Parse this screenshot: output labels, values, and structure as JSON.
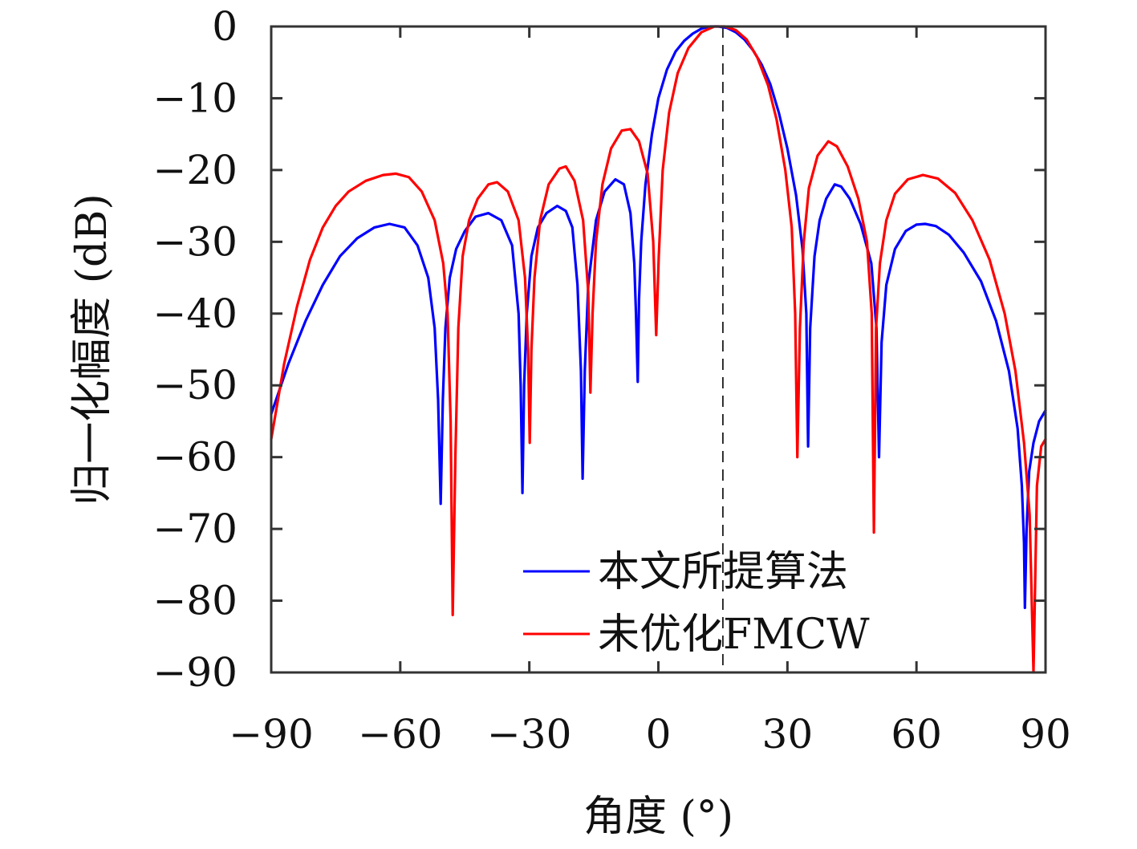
{
  "chart_data": {
    "type": "line",
    "title": "",
    "xlabel": "角度 (°)",
    "ylabel": "归一化幅度 (dB)",
    "xlim": [
      -90,
      90
    ],
    "ylim": [
      -90,
      0
    ],
    "xticks": [
      -90,
      -60,
      -30,
      0,
      30,
      60,
      90
    ],
    "yticks": [
      0,
      -10,
      -20,
      -30,
      -40,
      -50,
      -60,
      -70,
      -80,
      -90
    ],
    "xtick_labels": [
      "−90",
      "−60",
      "−30",
      "0",
      "30",
      "60",
      "90"
    ],
    "ytick_labels": [
      "0",
      "−10",
      "−20",
      "−30",
      "−40",
      "−50",
      "−60",
      "−70",
      "−80",
      "−90"
    ],
    "grid": false,
    "legend_position": "bottom-right",
    "reference_line": {
      "x": 15,
      "style": "dashed",
      "color": "#000000"
    },
    "series": [
      {
        "name": "本文所提算法",
        "color": "#0000ff",
        "points": [
          [
            -90,
            -54
          ],
          [
            -86,
            -47
          ],
          [
            -82,
            -41
          ],
          [
            -78,
            -36
          ],
          [
            -74,
            -32
          ],
          [
            -70,
            -29.5
          ],
          [
            -66,
            -28
          ],
          [
            -62.5,
            -27.5
          ],
          [
            -59,
            -28
          ],
          [
            -56,
            -30.5
          ],
          [
            -53.5,
            -35
          ],
          [
            -52,
            -42
          ],
          [
            -51.2,
            -52
          ],
          [
            -50.6,
            -66.5
          ],
          [
            -50.1,
            -52
          ],
          [
            -49.5,
            -42
          ],
          [
            -48.5,
            -35
          ],
          [
            -47,
            -31
          ],
          [
            -45,
            -28.5
          ],
          [
            -42.5,
            -26.5
          ],
          [
            -39.5,
            -26
          ],
          [
            -36.5,
            -27
          ],
          [
            -34,
            -30.5
          ],
          [
            -32.5,
            -40
          ],
          [
            -32,
            -50
          ],
          [
            -31.6,
            -65
          ],
          [
            -31.2,
            -50
          ],
          [
            -30.6,
            -40
          ],
          [
            -29.5,
            -32
          ],
          [
            -28,
            -28
          ],
          [
            -26,
            -26
          ],
          [
            -23.5,
            -25
          ],
          [
            -21.5,
            -25.7
          ],
          [
            -20,
            -28
          ],
          [
            -18.8,
            -36
          ],
          [
            -18,
            -48
          ],
          [
            -17.6,
            -63
          ],
          [
            -17.1,
            -48
          ],
          [
            -16.3,
            -36
          ],
          [
            -14.5,
            -27
          ],
          [
            -12.5,
            -23
          ],
          [
            -10,
            -21.3
          ],
          [
            -8,
            -22
          ],
          [
            -6.5,
            -26
          ],
          [
            -5.6,
            -33
          ],
          [
            -5.2,
            -40
          ],
          [
            -4.8,
            -49.5
          ],
          [
            -4.5,
            -38
          ],
          [
            -4,
            -30
          ],
          [
            -3,
            -22
          ],
          [
            -1.5,
            -15
          ],
          [
            0,
            -10
          ],
          [
            2,
            -6
          ],
          [
            4,
            -3.5
          ],
          [
            6,
            -2
          ],
          [
            8,
            -1
          ],
          [
            10,
            -0.3
          ],
          [
            12,
            0
          ],
          [
            14,
            0
          ],
          [
            16,
            -0.2
          ],
          [
            18,
            -0.8
          ],
          [
            20,
            -1.8
          ],
          [
            22,
            -3.3
          ],
          [
            24,
            -5.3
          ],
          [
            26,
            -8
          ],
          [
            28,
            -12
          ],
          [
            30,
            -17
          ],
          [
            32,
            -23.5
          ],
          [
            33.5,
            -31
          ],
          [
            34.4,
            -40
          ],
          [
            34.8,
            -58.5
          ],
          [
            35.3,
            -42
          ],
          [
            36.3,
            -32
          ],
          [
            37.5,
            -27
          ],
          [
            39,
            -24
          ],
          [
            41,
            -22
          ],
          [
            42.5,
            -22.3
          ],
          [
            44.5,
            -24
          ],
          [
            47,
            -27.5
          ],
          [
            49.5,
            -33
          ],
          [
            50.7,
            -42
          ],
          [
            51.3,
            -60
          ],
          [
            51.9,
            -44
          ],
          [
            53,
            -36
          ],
          [
            55,
            -31
          ],
          [
            57.5,
            -28.5
          ],
          [
            60,
            -27.6
          ],
          [
            62,
            -27.5
          ],
          [
            64.5,
            -27.8
          ],
          [
            67.5,
            -29
          ],
          [
            71,
            -31.5
          ],
          [
            75,
            -35.5
          ],
          [
            78.5,
            -41
          ],
          [
            81.5,
            -48
          ],
          [
            83.5,
            -56
          ],
          [
            84.5,
            -64
          ],
          [
            85,
            -72
          ],
          [
            85.2,
            -81
          ],
          [
            85.6,
            -70
          ],
          [
            86.2,
            -62
          ],
          [
            87.2,
            -58
          ],
          [
            88.5,
            -55
          ],
          [
            90,
            -53.5
          ]
        ]
      },
      {
        "name": "未优化FMCW",
        "color": "#ff0000",
        "points": [
          [
            -90,
            -57.5
          ],
          [
            -87,
            -47
          ],
          [
            -84,
            -39
          ],
          [
            -81,
            -32.5
          ],
          [
            -78,
            -28
          ],
          [
            -75,
            -25
          ],
          [
            -72,
            -23
          ],
          [
            -68,
            -21.5
          ],
          [
            -64,
            -20.7
          ],
          [
            -61,
            -20.5
          ],
          [
            -58,
            -21
          ],
          [
            -55,
            -23
          ],
          [
            -52,
            -27
          ],
          [
            -50,
            -33
          ],
          [
            -49,
            -40
          ],
          [
            -48.3,
            -55
          ],
          [
            -47.8,
            -82
          ],
          [
            -47.2,
            -60
          ],
          [
            -46.5,
            -42
          ],
          [
            -45.5,
            -32
          ],
          [
            -44,
            -27
          ],
          [
            -42,
            -24
          ],
          [
            -39.5,
            -22
          ],
          [
            -37.5,
            -21.7
          ],
          [
            -35,
            -23
          ],
          [
            -32.5,
            -27
          ],
          [
            -31,
            -35
          ],
          [
            -30.3,
            -45
          ],
          [
            -29.9,
            -58
          ],
          [
            -29.5,
            -45
          ],
          [
            -28.8,
            -35
          ],
          [
            -27.5,
            -27
          ],
          [
            -25.5,
            -22
          ],
          [
            -23,
            -19.8
          ],
          [
            -21.5,
            -19.5
          ],
          [
            -19.5,
            -21.5
          ],
          [
            -17.5,
            -27
          ],
          [
            -16.3,
            -37
          ],
          [
            -15.8,
            -51
          ],
          [
            -15.3,
            -40
          ],
          [
            -14.5,
            -30
          ],
          [
            -13,
            -22
          ],
          [
            -11,
            -17
          ],
          [
            -8.5,
            -14.5
          ],
          [
            -6.5,
            -14.3
          ],
          [
            -4.5,
            -16
          ],
          [
            -2.5,
            -20.5
          ],
          [
            -1.2,
            -30
          ],
          [
            -0.5,
            -43
          ],
          [
            0.1,
            -32
          ],
          [
            1,
            -20
          ],
          [
            2.5,
            -12
          ],
          [
            4.5,
            -6.5
          ],
          [
            7,
            -3
          ],
          [
            10,
            -0.8
          ],
          [
            13,
            0
          ],
          [
            15.5,
            0
          ],
          [
            18,
            -0.5
          ],
          [
            20.5,
            -1.8
          ],
          [
            23,
            -4.3
          ],
          [
            25.5,
            -8.2
          ],
          [
            27.5,
            -13
          ],
          [
            29.5,
            -20
          ],
          [
            31,
            -28
          ],
          [
            31.8,
            -40
          ],
          [
            32.3,
            -60
          ],
          [
            32.9,
            -42
          ],
          [
            33.8,
            -30
          ],
          [
            35,
            -22.5
          ],
          [
            37,
            -18
          ],
          [
            39.5,
            -16
          ],
          [
            41.5,
            -16.7
          ],
          [
            44,
            -19.5
          ],
          [
            46.5,
            -24
          ],
          [
            48.5,
            -30
          ],
          [
            49.6,
            -40
          ],
          [
            50.1,
            -70.5
          ],
          [
            50.6,
            -42
          ],
          [
            51.5,
            -33
          ],
          [
            53,
            -27
          ],
          [
            55,
            -23.3
          ],
          [
            58,
            -21.3
          ],
          [
            61.5,
            -20.7
          ],
          [
            65,
            -21.2
          ],
          [
            69,
            -23.2
          ],
          [
            73,
            -27
          ],
          [
            77,
            -32.5
          ],
          [
            80.5,
            -40
          ],
          [
            83,
            -48
          ],
          [
            85,
            -58
          ],
          [
            86.3,
            -68
          ],
          [
            87.2,
            -90
          ],
          [
            88,
            -64
          ],
          [
            89,
            -58.5
          ],
          [
            90,
            -57.5
          ]
        ]
      }
    ]
  }
}
